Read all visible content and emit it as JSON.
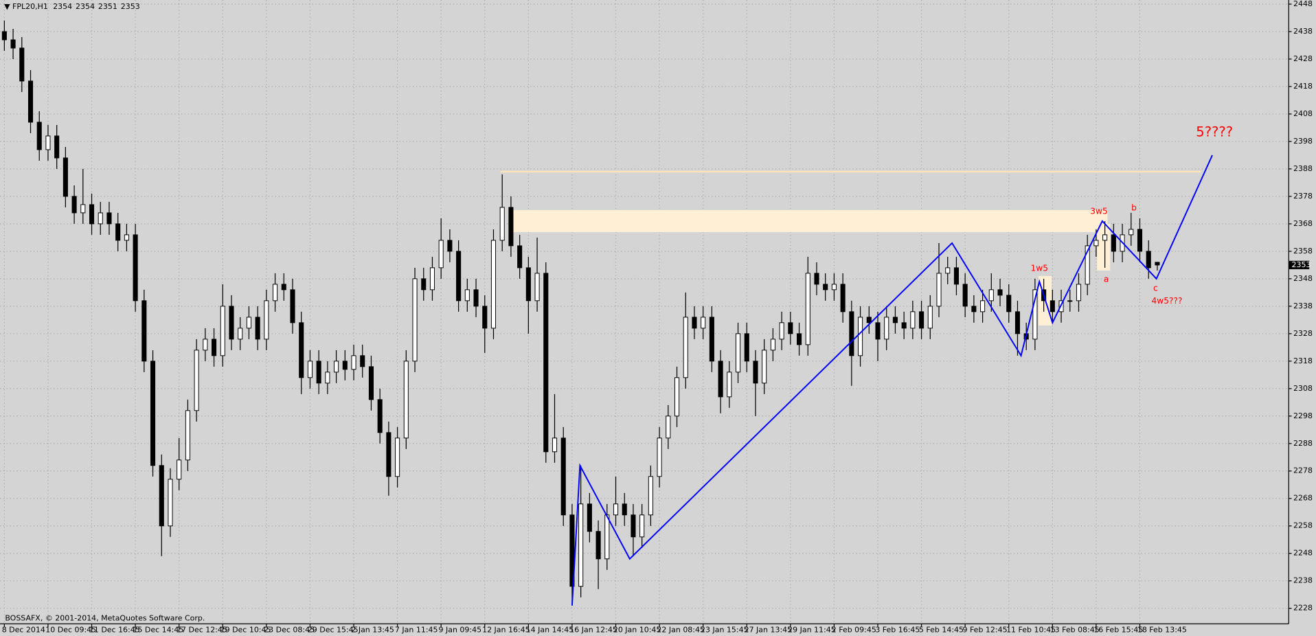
{
  "chart_data": {
    "type": "candlestick",
    "symbol": "FPL20,H1",
    "copyright": "BOSSAFX, © 2001-2014, MetaQuotes Software Corp.",
    "background": "#d4d4d4",
    "grid": true,
    "up_color": "#ffffff",
    "down_color": "#000000",
    "ylim": [
      2222.5,
      2449.5
    ],
    "yticks": [
      2228,
      2238,
      2248,
      2258,
      2268,
      2278,
      2288,
      2298,
      2308,
      2318,
      2328,
      2338,
      2348,
      2358,
      2368,
      2378,
      2388,
      2398,
      2408,
      2418,
      2428,
      2438,
      2448
    ],
    "xlim": [
      -0.5,
      147
    ],
    "xticks": [
      {
        "value": 0,
        "label": "8 Dec 2014"
      },
      {
        "value": 5,
        "label": "10 Dec 09:45"
      },
      {
        "value": 10,
        "label": "11 Dec 16:45"
      },
      {
        "value": 15,
        "label": "15 Dec 14:45"
      },
      {
        "value": 20,
        "label": "17 Dec 12:45"
      },
      {
        "value": 25,
        "label": "19 Dec 10:45"
      },
      {
        "value": 30,
        "label": "23 Dec 08:45"
      },
      {
        "value": 35,
        "label": "29 Dec 15:45"
      },
      {
        "value": 40,
        "label": "2 Jan 13:45"
      },
      {
        "value": 45,
        "label": "7 Jan 11:45"
      },
      {
        "value": 50,
        "label": "9 Jan 09:45"
      },
      {
        "value": 55,
        "label": "12 Jan 16:45"
      },
      {
        "value": 60,
        "label": "14 Jan 14:45"
      },
      {
        "value": 65,
        "label": "16 Jan 12:45"
      },
      {
        "value": 70,
        "label": "20 Jan 10:45"
      },
      {
        "value": 75,
        "label": "22 Jan 08:45"
      },
      {
        "value": 80,
        "label": "23 Jan 15:45"
      },
      {
        "value": 85,
        "label": "27 Jan 13:45"
      },
      {
        "value": 90,
        "label": "29 Jan 11:45"
      },
      {
        "value": 95,
        "label": "2 Feb 09:45"
      },
      {
        "value": 100,
        "label": "3 Feb 16:45"
      },
      {
        "value": 105,
        "label": "5 Feb 14:45"
      },
      {
        "value": 110,
        "label": "9 Feb 12:45"
      },
      {
        "value": 115,
        "label": "11 Feb 10:45"
      },
      {
        "value": 120,
        "label": "13 Feb 08:45"
      },
      {
        "value": 125,
        "label": "16 Feb 15:45"
      },
      {
        "value": 130,
        "label": "18 Feb 13:45"
      }
    ],
    "open": [
      2438,
      2435,
      2432,
      2420,
      2405,
      2395,
      2400,
      2392,
      2378,
      2372,
      2375,
      2368,
      2372,
      2368,
      2362,
      2364,
      2340,
      2318,
      2280,
      2258,
      2275,
      2282,
      2300,
      2322,
      2326,
      2320,
      2338,
      2326,
      2330,
      2334,
      2326,
      2340,
      2346,
      2344,
      2332,
      2312,
      2318,
      2310,
      2314,
      2318,
      2315,
      2320,
      2316,
      2304,
      2292,
      2276,
      2290,
      2318,
      2348,
      2344,
      2352,
      2362,
      2358,
      2340,
      2344,
      2338,
      2330,
      2362,
      2374,
      2360,
      2352,
      2340,
      2350,
      2285,
      2290,
      2262,
      2236,
      2266,
      2256,
      2246,
      2262,
      2266,
      2262,
      2254,
      2262,
      2276,
      2290,
      2298,
      2312,
      2334,
      2330,
      2334,
      2318,
      2305,
      2314,
      2328,
      2318,
      2310,
      2322,
      2326,
      2332,
      2328,
      2324,
      2350,
      2346,
      2344,
      2346,
      2336,
      2320,
      2334,
      2332,
      2326,
      2334,
      2332,
      2330,
      2336,
      2330,
      2338,
      2350,
      2352,
      2346,
      2338,
      2336,
      2340,
      2344,
      2342,
      2336,
      2328,
      2326,
      2344,
      2340,
      2336,
      2340,
      2340,
      2346,
      2360,
      2362,
      2364,
      2358,
      2364,
      2366,
      2358,
      2354
    ],
    "high": [
      2442,
      2439,
      2436,
      2424,
      2409,
      2404,
      2404,
      2396,
      2382,
      2388,
      2379,
      2376,
      2376,
      2372,
      2368,
      2368,
      2344,
      2322,
      2284,
      2279,
      2290,
      2304,
      2326,
      2330,
      2330,
      2346,
      2342,
      2334,
      2338,
      2338,
      2344,
      2350,
      2350,
      2348,
      2336,
      2322,
      2322,
      2318,
      2322,
      2322,
      2324,
      2324,
      2320,
      2308,
      2296,
      2294,
      2322,
      2352,
      2352,
      2356,
      2370,
      2366,
      2362,
      2348,
      2348,
      2342,
      2366,
      2386,
      2378,
      2364,
      2356,
      2363,
      2354,
      2306,
      2294,
      2266,
      2280,
      2270,
      2260,
      2266,
      2276,
      2270,
      2266,
      2266,
      2280,
      2294,
      2302,
      2316,
      2343,
      2338,
      2338,
      2338,
      2322,
      2318,
      2332,
      2332,
      2322,
      2326,
      2330,
      2336,
      2336,
      2332,
      2356,
      2354,
      2350,
      2350,
      2350,
      2340,
      2338,
      2338,
      2336,
      2338,
      2338,
      2336,
      2340,
      2340,
      2342,
      2361,
      2356,
      2356,
      2350,
      2342,
      2344,
      2350,
      2348,
      2346,
      2340,
      2332,
      2348,
      2348,
      2344,
      2344,
      2344,
      2350,
      2364,
      2366,
      2369,
      2368,
      2368,
      2372,
      2370,
      2362,
      2354
    ],
    "low": [
      2431,
      2428,
      2416,
      2401,
      2391,
      2391,
      2388,
      2374,
      2368,
      2368,
      2364,
      2364,
      2364,
      2358,
      2358,
      2336,
      2314,
      2276,
      2247,
      2254,
      2271,
      2278,
      2296,
      2318,
      2316,
      2316,
      2322,
      2322,
      2326,
      2322,
      2322,
      2336,
      2340,
      2328,
      2306,
      2308,
      2306,
      2306,
      2310,
      2311,
      2311,
      2312,
      2300,
      2288,
      2269,
      2272,
      2286,
      2314,
      2340,
      2340,
      2348,
      2354,
      2336,
      2336,
      2334,
      2321,
      2326,
      2358,
      2356,
      2348,
      2328,
      2336,
      2281,
      2281,
      2258,
      2229,
      2232,
      2252,
      2235,
      2242,
      2258,
      2258,
      2247,
      2250,
      2258,
      2272,
      2286,
      2294,
      2308,
      2326,
      2326,
      2314,
      2299,
      2301,
      2310,
      2314,
      2298,
      2306,
      2318,
      2322,
      2324,
      2320,
      2320,
      2342,
      2340,
      2340,
      2332,
      2309,
      2316,
      2328,
      2318,
      2322,
      2328,
      2326,
      2326,
      2326,
      2326,
      2334,
      2346,
      2342,
      2334,
      2332,
      2332,
      2336,
      2338,
      2332,
      2320,
      2322,
      2322,
      2336,
      2332,
      2332,
      2336,
      2336,
      2342,
      2356,
      2352,
      2354,
      2354,
      2360,
      2354,
      2348,
      2351
    ],
    "close": [
      2435,
      2432,
      2420,
      2405,
      2395,
      2400,
      2392,
      2378,
      2372,
      2375,
      2368,
      2372,
      2368,
      2362,
      2364,
      2340,
      2318,
      2280,
      2258,
      2275,
      2282,
      2300,
      2322,
      2326,
      2320,
      2338,
      2326,
      2330,
      2334,
      2326,
      2340,
      2346,
      2344,
      2332,
      2312,
      2318,
      2310,
      2314,
      2318,
      2315,
      2320,
      2316,
      2304,
      2292,
      2276,
      2290,
      2318,
      2348,
      2344,
      2352,
      2362,
      2358,
      2340,
      2344,
      2338,
      2330,
      2362,
      2374,
      2360,
      2352,
      2340,
      2350,
      2285,
      2290,
      2262,
      2236,
      2266,
      2256,
      2246,
      2262,
      2266,
      2262,
      2254,
      2262,
      2276,
      2290,
      2298,
      2312,
      2334,
      2330,
      2334,
      2318,
      2305,
      2314,
      2328,
      2318,
      2310,
      2322,
      2326,
      2332,
      2328,
      2324,
      2350,
      2346,
      2344,
      2346,
      2336,
      2320,
      2334,
      2332,
      2326,
      2334,
      2332,
      2330,
      2336,
      2330,
      2338,
      2350,
      2352,
      2346,
      2338,
      2336,
      2340,
      2344,
      2342,
      2336,
      2328,
      2326,
      2344,
      2340,
      2336,
      2340,
      2340,
      2346,
      2360,
      2362,
      2364,
      2358,
      2364,
      2366,
      2358,
      2352,
      2353
    ],
    "level": {
      "value": 2387,
      "from": 56.8,
      "to": 137,
      "color": "#ffe4b5"
    },
    "zones": [
      {
        "low": 2365,
        "high": 2373,
        "from": 58,
        "to": 126.3,
        "color": "#ffefd5"
      },
      {
        "low": 2331,
        "high": 2349,
        "from": 118.4,
        "to": 119.9,
        "color": "#ffefd5"
      },
      {
        "low": 2351,
        "high": 2368,
        "from": 125.1,
        "to": 126.6,
        "color": "#ffefd5"
      }
    ],
    "wave": {
      "x": [
        65,
        65.9,
        71.6,
        108.5,
        116.4,
        118.5,
        120,
        125.7,
        131.9,
        138.3
      ],
      "y": [
        2229,
        2280,
        2246,
        2361,
        2320,
        2347,
        2332,
        2369,
        2348,
        2393
      ],
      "color": "#0000ff"
    },
    "annotations": [
      "5????",
      "3w5",
      "b",
      "1w5",
      "a",
      "c",
      "4w5???"
    ]
  }
}
